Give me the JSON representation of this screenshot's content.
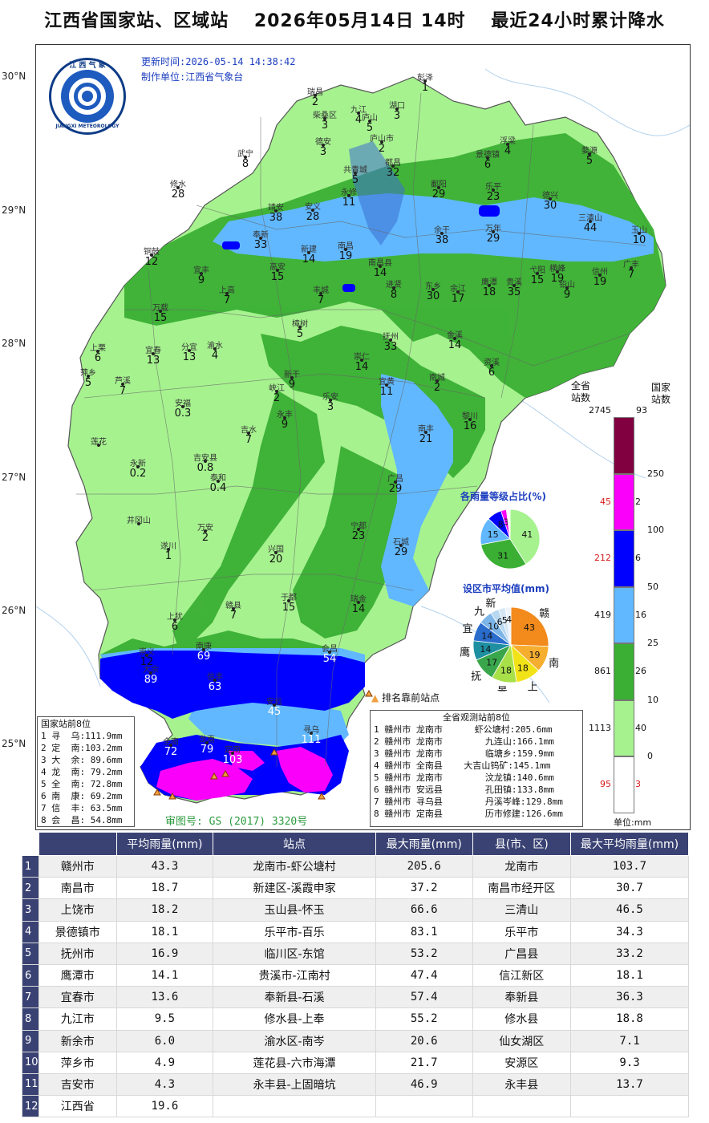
{
  "title": "江西省国家站、区域站　 2026年05月14日 14时 　最近24小时累计降水",
  "meta": {
    "update_time": "更新时间:2026-05-14 14:38:42",
    "producer": "制作单位:江西省气象台",
    "approval_no": "审图号: GS (2017) 3320号",
    "logo_text_top": "江 西 气 象",
    "logo_text_bottom": "JIANGXI METEOROLOGY"
  },
  "latitudes": [
    "30°N",
    "29°N",
    "28°N",
    "27°N",
    "26°N",
    "25°N"
  ],
  "colors": {
    "c0": "#ffffff",
    "c0_1": "#a6f28f",
    "c10": "#3aaf34",
    "c25": "#61b8ff",
    "c50": "#0000fe",
    "c100": "#fa00fa",
    "c250": "#800040",
    "water": "#3d6fd1",
    "title_blue": "#1d3fbf",
    "header_bg": "#3a4273"
  },
  "stations": [
    {
      "name": "彭泽",
      "val": "1"
    },
    {
      "name": "瑞昌",
      "val": "2"
    },
    {
      "name": "九江",
      "val": "4"
    },
    {
      "name": "湖口",
      "val": "3"
    },
    {
      "name": "柴桑区",
      "val": "3"
    },
    {
      "name": "庐山",
      "val": "5"
    },
    {
      "name": "庐山市",
      "val": "2"
    },
    {
      "name": "浮梁",
      "val": "4"
    },
    {
      "name": "景德镇",
      "val": "6"
    },
    {
      "name": "婺源",
      "val": "5"
    },
    {
      "name": "武宁",
      "val": "8"
    },
    {
      "name": "德安",
      "val": "3"
    },
    {
      "name": "共青城",
      "val": "5"
    },
    {
      "name": "都昌",
      "val": "32"
    },
    {
      "name": "修水",
      "val": "28"
    },
    {
      "name": "永修",
      "val": "11"
    },
    {
      "name": "鄱阳",
      "val": "29"
    },
    {
      "name": "乐平",
      "val": "23"
    },
    {
      "name": "德兴",
      "val": "30"
    },
    {
      "name": "三清山",
      "val": "44"
    },
    {
      "name": "靖安",
      "val": "38"
    },
    {
      "name": "安义",
      "val": "28"
    },
    {
      "name": "奉新",
      "val": "33"
    },
    {
      "name": "余干",
      "val": "38"
    },
    {
      "name": "万年",
      "val": "29"
    },
    {
      "name": "玉山",
      "val": "10"
    },
    {
      "name": "铜鼓",
      "val": "12"
    },
    {
      "name": "宜丰",
      "val": "9"
    },
    {
      "name": "新建",
      "val": "14"
    },
    {
      "name": "南昌",
      "val": "19"
    },
    {
      "name": "南昌县",
      "val": "14"
    },
    {
      "name": "进贤",
      "val": "8"
    },
    {
      "name": "鹰潭",
      "val": "18"
    },
    {
      "name": "贵溪",
      "val": "35"
    },
    {
      "name": "弋阳",
      "val": "15"
    },
    {
      "name": "横峰",
      "val": "19"
    },
    {
      "name": "铅山",
      "val": "9"
    },
    {
      "name": "信州",
      "val": "19"
    },
    {
      "name": "广丰",
      "val": "7"
    },
    {
      "name": "高安",
      "val": "15"
    },
    {
      "name": "上高",
      "val": "7"
    },
    {
      "name": "丰城",
      "val": "7"
    },
    {
      "name": "东乡",
      "val": "30"
    },
    {
      "name": "余江",
      "val": "17"
    },
    {
      "name": "万载",
      "val": "15"
    },
    {
      "name": "上栗",
      "val": "6"
    },
    {
      "name": "宜春",
      "val": "13"
    },
    {
      "name": "分宜",
      "val": "13"
    },
    {
      "name": "渝水",
      "val": "4"
    },
    {
      "name": "樟树",
      "val": "5"
    },
    {
      "name": "抚州",
      "val": "33"
    },
    {
      "name": "金溪",
      "val": "14"
    },
    {
      "name": "萍乡",
      "val": "5"
    },
    {
      "name": "芦溪",
      "val": "7"
    },
    {
      "name": "崇仁",
      "val": "14"
    },
    {
      "name": "资溪",
      "val": "6"
    },
    {
      "name": "新干",
      "val": "9"
    },
    {
      "name": "峡江",
      "val": "2"
    },
    {
      "name": "宜黄",
      "val": "11"
    },
    {
      "name": "南城",
      "val": "2"
    },
    {
      "name": "安福",
      "val": "0.3"
    },
    {
      "name": "永丰",
      "val": "9"
    },
    {
      "name": "乐安",
      "val": "3"
    },
    {
      "name": "黎川",
      "val": "16"
    },
    {
      "name": "吉水",
      "val": "7"
    },
    {
      "name": "南丰",
      "val": "21"
    },
    {
      "name": "莲花",
      "val": ""
    },
    {
      "name": "吉安县",
      "val": "0.8"
    },
    {
      "name": "永新",
      "val": "0.2"
    },
    {
      "name": "泰和",
      "val": "0.4"
    },
    {
      "name": "广昌",
      "val": "29"
    },
    {
      "name": "井冈山",
      "val": ""
    },
    {
      "name": "万安",
      "val": "2"
    },
    {
      "name": "宁都",
      "val": "23"
    },
    {
      "name": "遂川",
      "val": "1"
    },
    {
      "name": "兴国",
      "val": "20"
    },
    {
      "name": "石城",
      "val": "29"
    },
    {
      "name": "于都",
      "val": "15"
    },
    {
      "name": "瑞金",
      "val": "14"
    },
    {
      "name": "上犹",
      "val": "6"
    },
    {
      "name": "赣县",
      "val": "7"
    },
    {
      "name": "崇义",
      "val": "12"
    },
    {
      "name": "南康",
      "val": "69"
    },
    {
      "name": "会昌",
      "val": "54"
    },
    {
      "name": "大余",
      "val": "89"
    },
    {
      "name": "信丰",
      "val": "63"
    },
    {
      "name": "安远",
      "val": "45"
    },
    {
      "name": "龙南",
      "val": "79"
    },
    {
      "name": "全南",
      "val": "72"
    },
    {
      "name": "定南",
      "val": "103"
    },
    {
      "name": "寻乌",
      "val": "111"
    }
  ],
  "national_rank": {
    "title": "国家站前8位",
    "rows": [
      "1 寻  乌:111.9mm",
      "2 定  南:103.2mm",
      "3 大  余: 89.6mm",
      "4 龙  南: 79.2mm",
      "5 全  南: 72.8mm",
      "6 南  康: 69.2mm",
      "7 信  丰: 63.5mm",
      "8 会  昌: 54.8mm"
    ]
  },
  "province_rank": {
    "title": "全省观测站前8位",
    "rows": [
      "1 赣州市 龙南市      虾公塘村:205.6mm",
      "2 赣州市 龙南市        九连山:166.1mm",
      "3 赣州市 龙南市        临塘乡:159.9mm",
      "4 赣州市 全南县    大吉山钨矿:145.1mm",
      "5 赣州市 龙南市        汶龙镇:140.6mm",
      "6 赣州市 安远县        孔田镇:133.8mm",
      "7 赣州市 寻乌县        丹溪岑峰:129.8mm",
      "8 赣州市 定南县        历市修建:126.6mm"
    ]
  },
  "top_marker_label": "排名靠前站点",
  "pie_grade": {
    "title": "各雨量等级占比(%)",
    "slices": [
      {
        "label": "41",
        "value": 41,
        "color": "#a6f28f"
      },
      {
        "label": "31",
        "value": 31,
        "color": "#3aaf34"
      },
      {
        "label": "15",
        "value": 15,
        "color": "#61b8ff"
      },
      {
        "label": "8",
        "value": 8,
        "color": "#0000fe"
      },
      {
        "label": "3",
        "value": 3,
        "color": "#fa00fa"
      },
      {
        "label": "",
        "value": 2,
        "color": "#ffffff"
      }
    ]
  },
  "pie_city": {
    "title": "设区市平均值(mm)",
    "slices": [
      {
        "city": "赣",
        "value": 43,
        "color": "#f28a1c"
      },
      {
        "city": "南",
        "value": 19,
        "color": "#f6ae30"
      },
      {
        "city": "上",
        "value": 18,
        "color": "#f2e318"
      },
      {
        "city": "景",
        "value": 18,
        "color": "#a8e04a"
      },
      {
        "city": "抚",
        "value": 17,
        "color": "#3aa64b"
      },
      {
        "city": "鹰",
        "value": 14,
        "color": "#1d8fa1"
      },
      {
        "city": "宜",
        "value": 14,
        "color": "#2a6ccc"
      },
      {
        "city": "九",
        "value": 10,
        "color": "#7db5e8"
      },
      {
        "city": "新",
        "value": 6,
        "color": "#b8d7f0"
      },
      {
        "city": "",
        "value": 5,
        "color": "#d6e6f4"
      },
      {
        "city": "",
        "value": 4,
        "color": "#eef4fa"
      }
    ]
  },
  "legend": {
    "title_total": "全省\n站数",
    "title_national": "国家\n站数",
    "unit": "单位:mm",
    "total_all": "2745",
    "national_all": "93",
    "levels": [
      {
        "threshold": "250",
        "total": "",
        "national": "",
        "color": "#800040"
      },
      {
        "threshold": "100",
        "total": "45",
        "national": "2",
        "color": "#fa00fa"
      },
      {
        "threshold": "50",
        "total": "212",
        "national": "6",
        "color": "#0000fe"
      },
      {
        "threshold": "25",
        "total": "419",
        "national": "16",
        "color": "#61b8ff"
      },
      {
        "threshold": "10",
        "total": "861",
        "national": "26",
        "color": "#3aaf34"
      },
      {
        "threshold": "0",
        "total": "1113",
        "national": "40",
        "color": "#a6f28f"
      },
      {
        "threshold": "",
        "total": "95",
        "national": "3",
        "color": "#ffffff"
      }
    ]
  },
  "table": {
    "headers": [
      "",
      "平均雨量(mm)",
      "站点",
      "最大雨量(mm)",
      "县(市、区)",
      "最大平均雨量(mm)"
    ],
    "rows": [
      [
        "1",
        "赣州市",
        "43.3",
        "龙南市-虾公塘村",
        "205.6",
        "龙南市",
        "103.7"
      ],
      [
        "2",
        "南昌市",
        "18.7",
        "新建区-溪霞申家",
        "37.2",
        "南昌市经开区",
        "30.7"
      ],
      [
        "3",
        "上饶市",
        "18.2",
        "玉山县-怀玉",
        "66.6",
        "三清山",
        "46.5"
      ],
      [
        "4",
        "景德镇市",
        "18.1",
        "乐平市-百乐",
        "83.1",
        "乐平市",
        "34.3"
      ],
      [
        "5",
        "抚州市",
        "16.9",
        "临川区-东馆",
        "53.2",
        "广昌县",
        "33.2"
      ],
      [
        "6",
        "鹰潭市",
        "14.1",
        "贵溪市-江南村",
        "47.4",
        "信江新区",
        "18.1"
      ],
      [
        "7",
        "宜春市",
        "13.6",
        "奉新县-石溪",
        "57.4",
        "奉新县",
        "36.3"
      ],
      [
        "8",
        "九江市",
        "9.5",
        "修水县-上奉",
        "55.2",
        "修水县",
        "18.8"
      ],
      [
        "9",
        "新余市",
        "6.0",
        "渝水区-南岑",
        "20.6",
        "仙女湖区",
        "7.1"
      ],
      [
        "10",
        "萍乡市",
        "4.9",
        "莲花县-六市海潭",
        "21.7",
        "安源区",
        "9.3"
      ],
      [
        "11",
        "吉安市",
        "4.3",
        "永丰县-上固暗坑",
        "46.9",
        "永丰县",
        "13.7"
      ],
      [
        "12",
        "江西省",
        "19.6",
        "",
        "",
        "",
        ""
      ]
    ]
  }
}
